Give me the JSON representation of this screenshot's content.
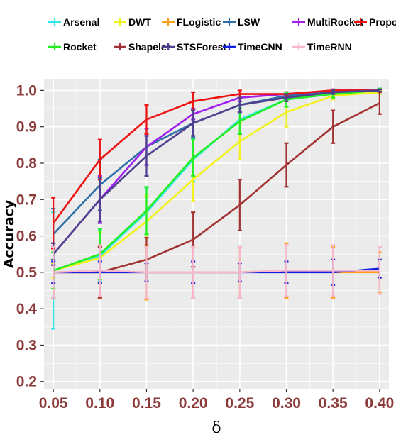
{
  "chart_data": {
    "type": "line",
    "title": "",
    "xlabel": "δ",
    "ylabel": "Accuracy",
    "x": [
      0.05,
      0.1,
      0.15,
      0.2,
      0.25,
      0.3,
      0.35,
      0.4
    ],
    "x_tick_labels": [
      "0.05",
      "0.10",
      "0.15",
      "0.20",
      "0.25",
      "0.30",
      "0.35",
      "0.40"
    ],
    "y_ticks": [
      0.2,
      0.3,
      0.4,
      0.5,
      0.6,
      0.7,
      0.8,
      0.9,
      1.0
    ],
    "y_tick_labels": [
      "0.2",
      "0.3",
      "0.4",
      "0.5",
      "0.6",
      "0.7",
      "0.8",
      "0.9",
      "1.0"
    ],
    "xlim": [
      0.04,
      0.41
    ],
    "ylim": [
      0.18,
      1.03
    ],
    "grid": true,
    "legend_position": "top",
    "series": [
      {
        "name": "Arsenal",
        "color": "#33e6e6",
        "values": [
          0.505,
          0.545,
          0.665,
          0.81,
          0.92,
          0.975,
          0.99,
          1.0
        ],
        "err": [
          0.16,
          0.07,
          0.065,
          0.06,
          0.04,
          0.02,
          0.01,
          0.005
        ]
      },
      {
        "name": "DWT",
        "color": "#f2f21a",
        "values": [
          0.505,
          0.54,
          0.64,
          0.755,
          0.86,
          0.94,
          0.985,
          0.995
        ],
        "err": [
          0.02,
          0.07,
          0.07,
          0.06,
          0.05,
          0.04,
          0.01,
          0.005
        ]
      },
      {
        "name": "FLogistic",
        "color": "#ff9f1c",
        "values": [
          0.5,
          0.5,
          0.5,
          0.5,
          0.5,
          0.505,
          0.5,
          0.5
        ],
        "err": [
          0.07,
          0.07,
          0.075,
          0.07,
          0.07,
          0.075,
          0.07,
          0.055
        ]
      },
      {
        "name": "LSW",
        "color": "#2e6fa8",
        "values": [
          0.605,
          0.74,
          0.845,
          0.91,
          0.96,
          0.985,
          0.995,
          1.0
        ],
        "err": [
          0.07,
          0.07,
          0.05,
          0.04,
          0.02,
          0.01,
          0.005,
          0.005
        ]
      },
      {
        "name": "MultiRocket",
        "color": "#a020f0",
        "values": [
          0.55,
          0.7,
          0.845,
          0.935,
          0.98,
          0.99,
          1.0,
          1.0
        ],
        "err": [
          0.03,
          0.065,
          0.05,
          0.015,
          0.01,
          0.005,
          0.003,
          0.003
        ]
      },
      {
        "name": "Proposed",
        "color": "#ee1111",
        "values": [
          0.635,
          0.81,
          0.92,
          0.97,
          0.99,
          0.99,
          1.0,
          1.0
        ],
        "err": [
          0.07,
          0.055,
          0.04,
          0.025,
          0.01,
          0.005,
          0.003,
          0.003
        ]
      },
      {
        "name": "Rocket",
        "color": "#22ee22",
        "values": [
          0.505,
          0.55,
          0.67,
          0.815,
          0.915,
          0.975,
          0.99,
          1.0
        ],
        "err": [
          0.05,
          0.07,
          0.065,
          0.05,
          0.035,
          0.02,
          0.01,
          0.005
        ]
      },
      {
        "name": "Shapelet",
        "color": "#a33333",
        "values": [
          0.5,
          0.5,
          0.535,
          0.59,
          0.685,
          0.795,
          0.9,
          0.965
        ],
        "err": [
          0.07,
          0.07,
          0.06,
          0.075,
          0.07,
          0.06,
          0.045,
          0.03
        ]
      },
      {
        "name": "STSForest",
        "color": "#4f3f8f",
        "values": [
          0.55,
          0.7,
          0.82,
          0.91,
          0.96,
          0.98,
          0.995,
          1.0
        ],
        "err": [
          0.03,
          0.06,
          0.055,
          0.035,
          0.02,
          0.01,
          0.005,
          0.003
        ]
      },
      {
        "name": "TimeCNN",
        "color": "#1020e0",
        "values": [
          0.5,
          0.5,
          0.5,
          0.5,
          0.5,
          0.5,
          0.5,
          0.51
        ],
        "err": [
          0.03,
          0.03,
          0.025,
          0.03,
          0.025,
          0.03,
          0.035,
          0.025
        ]
      },
      {
        "name": "TimeRNN",
        "color": "#f7b8cc",
        "values": [
          0.5,
          0.505,
          0.5,
          0.5,
          0.5,
          0.505,
          0.505,
          0.505
        ],
        "err": [
          0.07,
          0.07,
          0.07,
          0.07,
          0.07,
          0.07,
          0.07,
          0.065
        ]
      }
    ]
  }
}
